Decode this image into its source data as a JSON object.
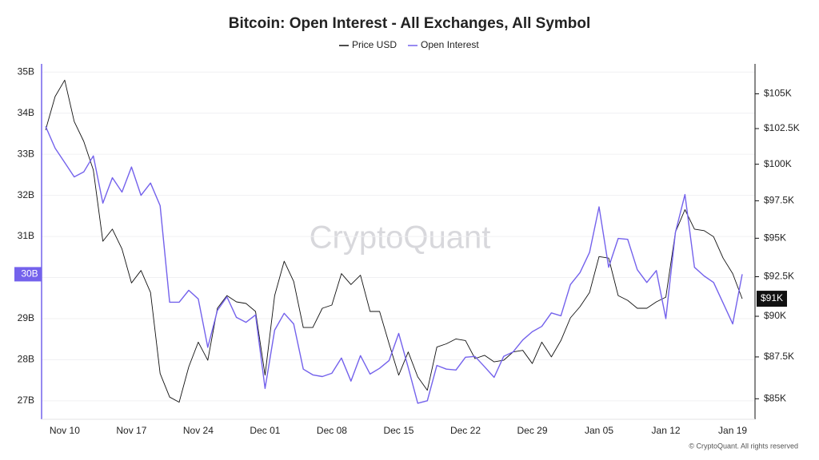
{
  "chart_data": {
    "type": "line",
    "title": "Bitcoin: Open Interest - All Exchanges, All Symbol",
    "watermark": "CryptoQuant",
    "footer": "© CryptoQuant. All rights reserved",
    "categories": [
      null,
      null,
      "Nov 10",
      null,
      null,
      null,
      null,
      null,
      null,
      "Nov 17",
      null,
      null,
      null,
      null,
      null,
      null,
      "Nov 24",
      null,
      null,
      null,
      null,
      null,
      null,
      "Dec 01",
      null,
      null,
      null,
      null,
      null,
      null,
      "Dec 08",
      null,
      null,
      null,
      null,
      null,
      null,
      "Dec 15",
      null,
      null,
      null,
      null,
      null,
      null,
      "Dec 22",
      null,
      null,
      null,
      null,
      null,
      null,
      "Dec 29",
      null,
      null,
      null,
      null,
      null,
      null,
      "Jan 05",
      null,
      null,
      null,
      null,
      null,
      null,
      "Jan 12",
      null,
      null,
      null,
      null,
      null,
      null,
      "Jan 19",
      null
    ],
    "series": [
      {
        "name": "Price USD",
        "color": "#111111",
        "axis": "y2",
        "values": [
          102.4,
          104.8,
          106.0,
          103.0,
          101.6,
          99.6,
          94.8,
          95.6,
          94.3,
          92.1,
          92.9,
          91.5,
          86.5,
          85.1,
          84.8,
          86.9,
          88.4,
          87.3,
          90.5,
          91.3,
          90.9,
          90.8,
          90.3,
          86.4,
          91.3,
          93.5,
          92.2,
          89.3,
          89.3,
          90.5,
          90.7,
          92.7,
          92.0,
          92.6,
          90.3,
          90.3,
          88.3,
          86.4,
          87.8,
          86.3,
          85.5,
          88.1,
          88.3,
          88.6,
          88.5,
          87.4,
          87.6,
          87.2,
          87.3,
          87.8,
          87.9,
          87.1,
          88.4,
          87.5,
          88.5,
          89.9,
          90.6,
          91.5,
          93.8,
          93.7,
          91.3,
          91.0,
          90.5,
          90.5,
          90.9,
          91.2,
          95.4,
          96.9,
          95.6,
          95.5,
          95.1,
          93.7,
          92.7,
          91.1
        ]
      },
      {
        "name": "Open Interest",
        "color": "#7462ec",
        "axis": "y",
        "values": [
          33.68,
          33.15,
          32.8,
          32.45,
          32.57,
          32.96,
          31.81,
          32.43,
          32.08,
          32.69,
          32.0,
          32.3,
          31.75,
          29.4,
          29.4,
          29.69,
          29.48,
          28.3,
          29.2,
          29.53,
          29.03,
          28.91,
          29.09,
          27.3,
          28.72,
          29.13,
          28.87,
          27.77,
          27.63,
          27.59,
          27.67,
          28.04,
          27.48,
          28.1,
          27.65,
          27.79,
          27.98,
          28.64,
          27.81,
          26.94,
          27.0,
          27.86,
          27.77,
          27.75,
          28.06,
          28.08,
          27.83,
          27.57,
          28.08,
          28.19,
          28.48,
          28.68,
          28.81,
          29.14,
          29.07,
          29.83,
          30.12,
          30.61,
          31.72,
          30.25,
          30.95,
          30.93,
          30.19,
          29.88,
          30.17,
          29.0,
          31.1,
          32.02,
          30.25,
          30.04,
          29.88,
          29.38,
          28.87,
          30.08
        ]
      }
    ],
    "ylim": [
      26.55,
      35.2
    ],
    "yticks": [
      {
        "value": 27,
        "label": "27B"
      },
      {
        "value": 28,
        "label": "28B"
      },
      {
        "value": 29,
        "label": "29B"
      },
      {
        "value": 30,
        "label": "30B"
      },
      {
        "value": 31,
        "label": "31B"
      },
      {
        "value": 32,
        "label": "32B"
      },
      {
        "value": 33,
        "label": "33B"
      },
      {
        "value": 34,
        "label": "34B"
      },
      {
        "value": 35,
        "label": "35B"
      }
    ],
    "y2lim": [
      83.8,
      107.2
    ],
    "y2_log": true,
    "y2ticks": [
      {
        "value": 85,
        "label": "$85K"
      },
      {
        "value": 87.5,
        "label": "$87.5K"
      },
      {
        "value": 90,
        "label": "$90K"
      },
      {
        "value": 92.5,
        "label": "$92.5K"
      },
      {
        "value": 95,
        "label": "$95K"
      },
      {
        "value": 97.5,
        "label": "$97.5K"
      },
      {
        "value": 100,
        "label": "$100K"
      },
      {
        "value": 102.5,
        "label": "$102.5K"
      },
      {
        "value": 105,
        "label": "$105K"
      }
    ],
    "y_badge": {
      "value": 30.08,
      "label": "30B"
    },
    "y2_badge": {
      "value": 91.1,
      "label": "$91K"
    },
    "grid": true
  }
}
